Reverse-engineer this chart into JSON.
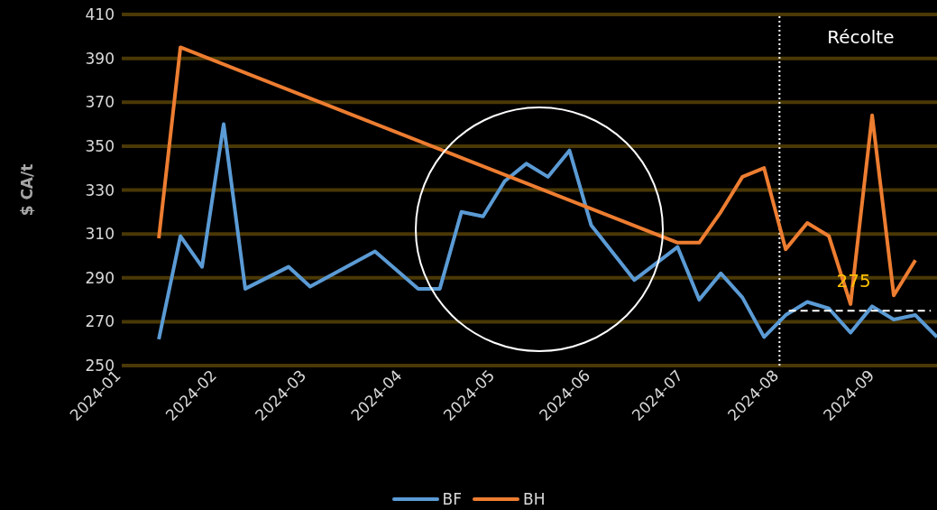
{
  "chart_data": {
    "type": "line",
    "ylabel": "$ CA/t",
    "xlim": [
      "2024-01-01",
      "2024-09-21"
    ],
    "xticks": [
      "2024-01",
      "2024-02",
      "2024-03",
      "2024-04",
      "2024-05",
      "2024-06",
      "2024-07",
      "2024-08",
      "2024-09"
    ],
    "ylim": [
      250,
      410
    ],
    "yticks": [
      250,
      270,
      290,
      310,
      330,
      350,
      370,
      390,
      410
    ],
    "grid": "y",
    "legend": "bottom",
    "marker": "none",
    "line_style": "solid",
    "series": [
      {
        "name": "BF",
        "color": "#5b9bd5",
        "x": [
          "2024-01-13",
          "2024-01-20",
          "2024-01-27",
          "2024-02-03",
          "2024-02-10",
          "2024-02-24",
          "2024-03-02",
          "2024-03-23",
          "2024-04-06",
          "2024-04-13",
          "2024-04-20",
          "2024-04-27",
          "2024-05-04",
          "2024-05-11",
          "2024-05-18",
          "2024-05-25",
          "2024-06-01",
          "2024-06-15",
          "2024-06-29",
          "2024-07-06",
          "2024-07-13",
          "2024-07-20",
          "2024-07-27",
          "2024-08-03",
          "2024-08-10",
          "2024-08-17",
          "2024-08-24",
          "2024-08-31",
          "2024-09-07",
          "2024-09-14",
          "2024-09-21"
        ],
        "values": [
          262,
          309,
          295,
          360,
          285,
          295,
          286,
          302,
          285,
          285,
          320,
          318,
          334,
          342,
          336,
          348,
          314,
          289,
          304,
          280,
          292,
          281,
          263,
          273,
          279,
          276,
          265,
          277,
          271,
          273,
          263
        ]
      },
      {
        "name": "BH",
        "color": "#ed7d31",
        "x": [
          "2024-01-13",
          "2024-01-20",
          "2024-06-29",
          "2024-07-06",
          "2024-07-13",
          "2024-07-20",
          "2024-07-27",
          "2024-08-03",
          "2024-08-10",
          "2024-08-17",
          "2024-08-24",
          "2024-08-31",
          "2024-09-07",
          "2024-09-14"
        ],
        "values": [
          308,
          395,
          306,
          306,
          320,
          336,
          340,
          303,
          315,
          309,
          278,
          364,
          282,
          298
        ]
      },
      {
        "type": "line",
        "color": "#ffffff",
        "line_style": "dashed",
        "x": [
          "2024-08-04",
          "2024-09-19"
        ],
        "values": [
          275,
          275
        ]
      }
    ],
    "ref_lines": [
      {
        "axis": "x",
        "value": "2024-08",
        "label": "Récolte",
        "color": "#ffffff",
        "line_style": "dotted"
      }
    ],
    "annotations": [
      {
        "text": "275",
        "x": "2024-08-25",
        "y": 275
      }
    ]
  }
}
